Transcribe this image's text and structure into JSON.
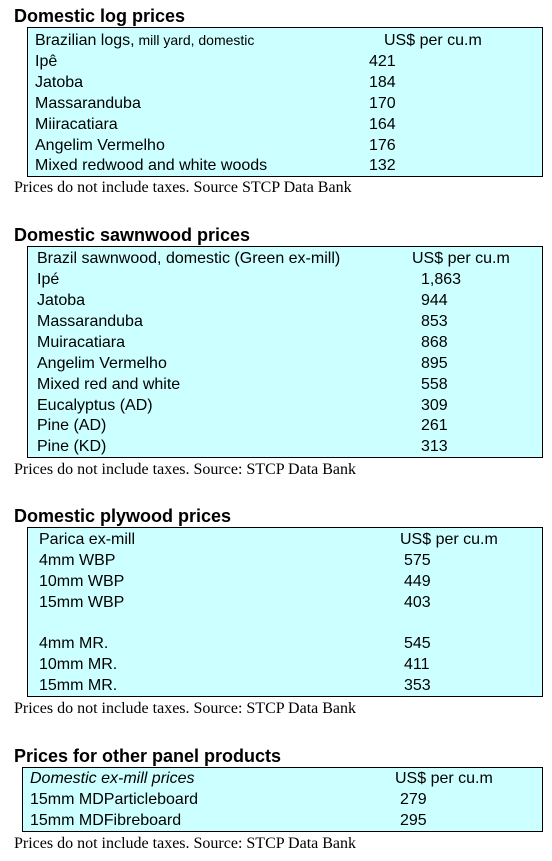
{
  "logs": {
    "title": "Domestic log prices",
    "header_main": "Brazilian logs,",
    "header_sub": " mill yard, domestic",
    "header_unit": "US$ per cu.m",
    "rows": [
      {
        "name": "Ipê",
        "value": "421"
      },
      {
        "name": "Jatoba",
        "value": "184"
      },
      {
        "name": "Massaranduba",
        "value": "170"
      },
      {
        "name": "Miiracatiara",
        "value": "164"
      },
      {
        "name": "Angelim Vermelho",
        "value": "176"
      },
      {
        "name": "Mixed redwood and white woods",
        "value": "132"
      }
    ],
    "note": "Prices do not include taxes. Source STCP Data Bank"
  },
  "sawnwood": {
    "title": "Domestic sawnwood prices",
    "header_main": "Brazil sawnwood, domestic (Green ex-mill)",
    "header_unit": "US$ per cu.m",
    "rows": [
      {
        "name": "Ipé",
        "value": "1,863"
      },
      {
        "name": "Jatoba",
        "value": "944"
      },
      {
        "name": "Massaranduba",
        "value": "853"
      },
      {
        "name": "Muiracatiara",
        "value": "868"
      },
      {
        "name": "Angelim Vermelho",
        "value": "895"
      },
      {
        "name": "Mixed red and white",
        "value": "558"
      },
      {
        "name": "Eucalyptus (AD)",
        "value": "309"
      },
      {
        "name": "Pine (AD)",
        "value": "261"
      },
      {
        "name": "Pine (KD)",
        "value": "313"
      }
    ],
    "note": "Prices do not include taxes. Source: STCP Data Bank"
  },
  "plywood": {
    "title": "Domestic plywood prices",
    "header_main": "Parica ex-mill",
    "header_unit": "US$ per cu.m",
    "rows": [
      {
        "name": "4mm WBP",
        "value": "575"
      },
      {
        "name": "10mm WBP",
        "value": "449"
      },
      {
        "name": "15mm WBP",
        "value": "403"
      },
      {
        "name": "4mm MR.",
        "value": "545"
      },
      {
        "name": "10mm MR.",
        "value": "411"
      },
      {
        "name": "15mm MR.",
        "value": "353"
      }
    ],
    "note": "Prices do not include taxes. Source: STCP Data Bank"
  },
  "panels": {
    "title": "Prices for other panel products",
    "header_main": "Domestic ex-mill prices",
    "header_unit": "US$ per cu.m",
    "rows": [
      {
        "name": "15mm MDParticleboard",
        "value": "279"
      },
      {
        "name": "15mm MDFibreboard",
        "value": "295"
      }
    ],
    "note": "Prices do not include taxes. Source: STCP Data Bank"
  }
}
